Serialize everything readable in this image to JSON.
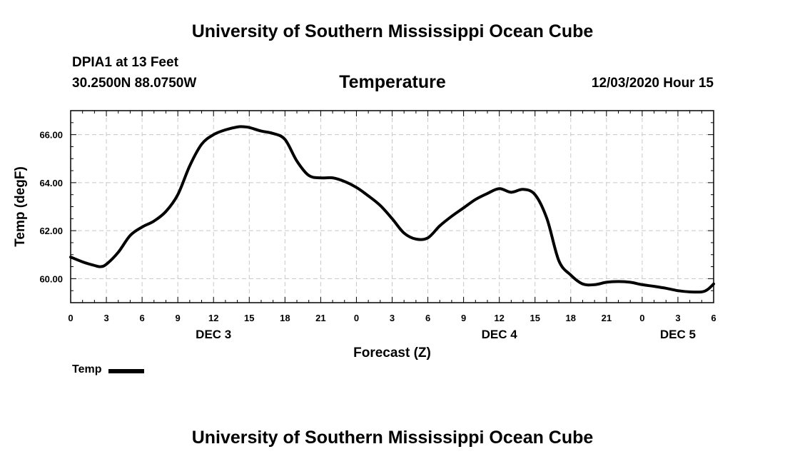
{
  "header": {
    "title": "University of Southern Mississippi Ocean Cube",
    "station": "DPIA1 at 13 Feet",
    "coordinates": "30.2500N 88.0750W",
    "chart_title": "Temperature",
    "datetime": "12/03/2020 Hour 15"
  },
  "footer": {
    "title": "University of Southern Mississippi Ocean Cube"
  },
  "legend": {
    "label": "Temp",
    "color": "#000000"
  },
  "chart_data": {
    "type": "line",
    "title": "Temperature",
    "xlabel": "Forecast (Z)",
    "ylabel": "Temp (degF)",
    "x_unit": "hours since 2020-12-03 00Z",
    "xlim": [
      0,
      54
    ],
    "ylim": [
      59.0,
      67.0
    ],
    "grid": true,
    "legend_position": "bottom-left",
    "x_tick_values": [
      0,
      3,
      6,
      9,
      12,
      15,
      18,
      21,
      24,
      27,
      30,
      33,
      36,
      39,
      42,
      45,
      48,
      51,
      54
    ],
    "x_tick_labels": [
      "0",
      "3",
      "6",
      "9",
      "12",
      "15",
      "18",
      "21",
      "0",
      "3",
      "6",
      "9",
      "12",
      "15",
      "18",
      "21",
      "0",
      "3",
      "6"
    ],
    "y_tick_values": [
      60,
      62,
      64,
      66
    ],
    "y_tick_labels": [
      "60.00",
      "62.00",
      "64.00",
      "66.00"
    ],
    "day_labels": [
      {
        "x": 12,
        "label": "DEC 3"
      },
      {
        "x": 36,
        "label": "DEC 4"
      },
      {
        "x": 51,
        "label": "DEC 5"
      }
    ],
    "series": [
      {
        "name": "Temp",
        "x": [
          0,
          1,
          2,
          2.5,
          3,
          4,
          5,
          6,
          7,
          8,
          9,
          10,
          11,
          12,
          13,
          14,
          14.5,
          15,
          16,
          17,
          18,
          19,
          20,
          21,
          22,
          23,
          24,
          25,
          26,
          27,
          28,
          29,
          30,
          31,
          32,
          33,
          34,
          35,
          36,
          37,
          38,
          39,
          40,
          41,
          42,
          43,
          44,
          45,
          46,
          47,
          48,
          49,
          50,
          51,
          52,
          53,
          53.5,
          54
        ],
        "values": [
          60.9,
          60.7,
          60.55,
          60.5,
          60.6,
          61.1,
          61.8,
          62.15,
          62.4,
          62.8,
          63.5,
          64.7,
          65.6,
          66.0,
          66.2,
          66.32,
          66.33,
          66.3,
          66.15,
          66.05,
          65.8,
          64.9,
          64.3,
          64.2,
          64.2,
          64.05,
          63.8,
          63.45,
          63.05,
          62.5,
          61.9,
          61.65,
          61.7,
          62.2,
          62.6,
          62.95,
          63.3,
          63.55,
          63.75,
          63.6,
          63.72,
          63.5,
          62.5,
          60.75,
          60.15,
          59.78,
          59.75,
          59.85,
          59.88,
          59.85,
          59.75,
          59.68,
          59.6,
          59.5,
          59.45,
          59.45,
          59.55,
          59.78
        ]
      }
    ]
  }
}
